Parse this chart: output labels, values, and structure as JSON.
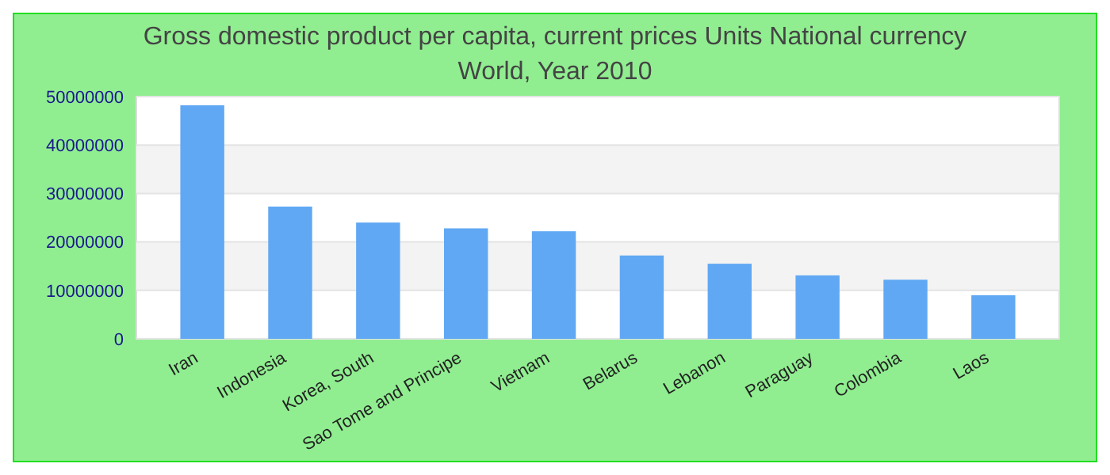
{
  "chart_data": {
    "type": "bar",
    "title": "Gross domestic product per capita, current prices Units National currency",
    "subtitle": "World, Year 2010",
    "categories": [
      "Iran",
      "Indonesia",
      "Korea, South",
      "Sao Tome and Principe",
      "Vietnam",
      "Belarus",
      "Lebanon",
      "Paraguay",
      "Colombia",
      "Laos"
    ],
    "values": [
      48200000,
      27300000,
      24000000,
      22800000,
      22200000,
      17200000,
      15500000,
      13100000,
      12200000,
      9000000
    ],
    "color": "#60a8f4",
    "ylim": [
      0,
      50000000
    ],
    "yticks": [
      0,
      10000000,
      20000000,
      30000000,
      40000000,
      50000000
    ],
    "grid": "y"
  }
}
